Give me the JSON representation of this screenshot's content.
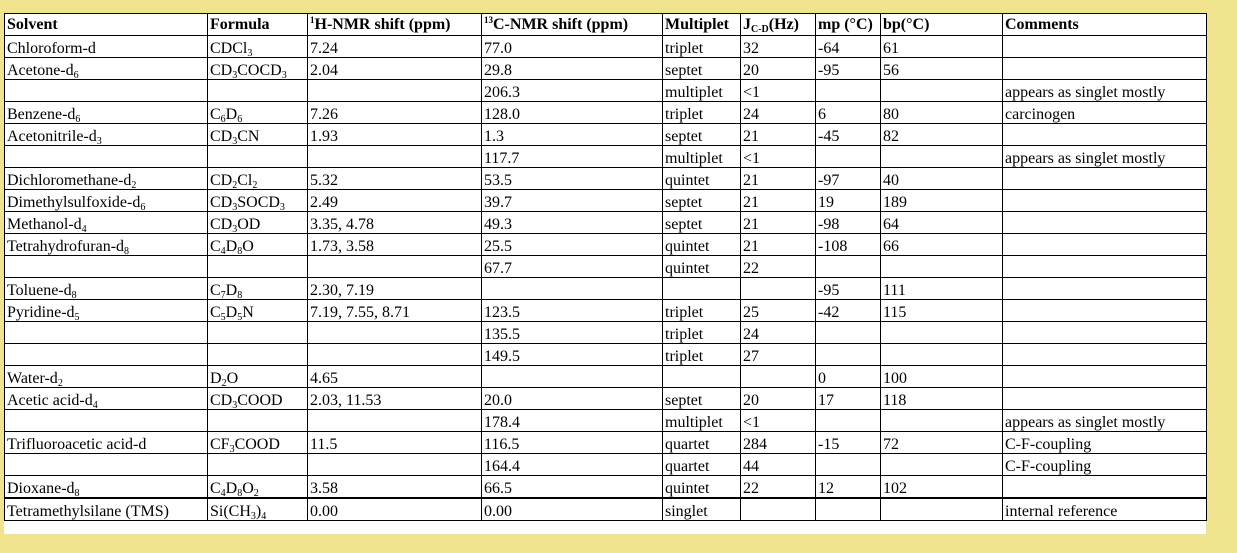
{
  "headers": {
    "solvent": "Solvent",
    "formula": "Formula",
    "h_nmr": {
      "sup": "1",
      "text": "H-NMR shift (ppm)"
    },
    "c_nmr": {
      "sup": "13",
      "text": "C-NMR shift (ppm)"
    },
    "multiplet": "Multiplet",
    "jcd": {
      "text": "J",
      "sub": "C-D",
      "tail": "(Hz)"
    },
    "mp": "mp (°C)",
    "bp": "bp(°C)",
    "comments": "Comments"
  },
  "rows": [
    {
      "solvent": [
        [
          "Chloroform-d",
          ""
        ]
      ],
      "formula": [
        [
          "CDCl",
          ""
        ],
        [
          "3",
          "s"
        ]
      ],
      "h": "7.24",
      "c": "77.0",
      "mult": "triplet",
      "j": "32",
      "mp": "-64",
      "bp": "61",
      "comment": ""
    },
    {
      "solvent": [
        [
          "Acetone-d",
          ""
        ],
        [
          "6",
          "s"
        ]
      ],
      "formula": [
        [
          "CD",
          ""
        ],
        [
          "3",
          "s"
        ],
        [
          "COCD",
          ""
        ],
        [
          "3",
          "s"
        ]
      ],
      "h": "2.04",
      "c": "29.8",
      "mult": "septet",
      "j": "20",
      "mp": "-95",
      "bp": "56",
      "comment": ""
    },
    {
      "solvent": [],
      "formula": [],
      "h": "",
      "c": "206.3",
      "mult": "multiplet",
      "j": "<1",
      "mp": "",
      "bp": "",
      "comment": "appears as singlet mostly"
    },
    {
      "solvent": [
        [
          "Benzene-d",
          ""
        ],
        [
          "6",
          "s"
        ]
      ],
      "formula": [
        [
          "C",
          ""
        ],
        [
          "6",
          "s"
        ],
        [
          "D",
          ""
        ],
        [
          "6",
          "s"
        ]
      ],
      "h": "7.26",
      "c": "128.0",
      "mult": "triplet",
      "j": "24",
      "mp": "6",
      "bp": "80",
      "comment": "carcinogen"
    },
    {
      "solvent": [
        [
          "Acetonitrile-d",
          ""
        ],
        [
          "3",
          "s"
        ]
      ],
      "formula": [
        [
          "CD",
          ""
        ],
        [
          "3",
          "s"
        ],
        [
          "CN",
          ""
        ]
      ],
      "h": "1.93",
      "c": "1.3",
      "mult": "septet",
      "j": "21",
      "mp": "-45",
      "bp": "82",
      "comment": ""
    },
    {
      "solvent": [],
      "formula": [],
      "h": "",
      "c": "117.7",
      "mult": "multiplet",
      "j": "<1",
      "mp": "",
      "bp": "",
      "comment": "appears as singlet mostly"
    },
    {
      "solvent": [
        [
          "Dichloromethane-d",
          ""
        ],
        [
          "2",
          "s"
        ]
      ],
      "formula": [
        [
          "CD",
          ""
        ],
        [
          "2",
          "s"
        ],
        [
          "Cl",
          ""
        ],
        [
          "2",
          "s"
        ]
      ],
      "h": "5.32",
      "c": "53.5",
      "mult": "quintet",
      "j": "21",
      "mp": "-97",
      "bp": "40",
      "comment": ""
    },
    {
      "solvent": [
        [
          "Dimethylsulfoxide-d",
          ""
        ],
        [
          "6",
          "s"
        ]
      ],
      "formula": [
        [
          "CD",
          ""
        ],
        [
          "3",
          "s"
        ],
        [
          "SOCD",
          ""
        ],
        [
          "3",
          "s"
        ]
      ],
      "h": "2.49",
      "c": "39.7",
      "mult": "septet",
      "j": "21",
      "mp": "19",
      "bp": "189",
      "comment": ""
    },
    {
      "solvent": [
        [
          "Methanol-d",
          ""
        ],
        [
          "4",
          "s"
        ]
      ],
      "formula": [
        [
          "CD",
          ""
        ],
        [
          "3",
          "s"
        ],
        [
          "OD",
          ""
        ]
      ],
      "h": "3.35, 4.78",
      "c": "49.3",
      "mult": "septet",
      "j": "21",
      "mp": "-98",
      "bp": "64",
      "comment": ""
    },
    {
      "solvent": [
        [
          "Tetrahydrofuran-d",
          ""
        ],
        [
          "8",
          "s"
        ]
      ],
      "formula": [
        [
          "C",
          ""
        ],
        [
          "4",
          "s"
        ],
        [
          "D",
          ""
        ],
        [
          "8",
          "s"
        ],
        [
          "O",
          ""
        ]
      ],
      "h": "1.73, 3.58",
      "c": "25.5",
      "mult": "quintet",
      "j": "21",
      "mp": "-108",
      "bp": "66",
      "comment": ""
    },
    {
      "solvent": [],
      "formula": [],
      "h": "",
      "c": "67.7",
      "mult": "quintet",
      "j": "22",
      "mp": "",
      "bp": "",
      "comment": ""
    },
    {
      "solvent": [
        [
          "Toluene-d",
          ""
        ],
        [
          "8",
          "s"
        ]
      ],
      "formula": [
        [
          "C",
          ""
        ],
        [
          "7",
          "s"
        ],
        [
          "D",
          ""
        ],
        [
          "8",
          "s"
        ]
      ],
      "h": "2.30, 7.19",
      "c": "",
      "mult": "",
      "j": "",
      "mp": "-95",
      "bp": "111",
      "comment": ""
    },
    {
      "solvent": [
        [
          "Pyridine-d",
          ""
        ],
        [
          "5",
          "s"
        ]
      ],
      "formula": [
        [
          "C",
          ""
        ],
        [
          "5",
          "s"
        ],
        [
          "D",
          ""
        ],
        [
          "5",
          "s"
        ],
        [
          "N",
          ""
        ]
      ],
      "h": "7.19, 7.55, 8.71",
      "c": "123.5",
      "mult": "triplet",
      "j": "25",
      "mp": "-42",
      "bp": "115",
      "comment": ""
    },
    {
      "solvent": [],
      "formula": [],
      "h": "",
      "c": "135.5",
      "mult": "triplet",
      "j": "24",
      "mp": "",
      "bp": "",
      "comment": ""
    },
    {
      "solvent": [],
      "formula": [],
      "h": "",
      "c": "149.5",
      "mult": "triplet",
      "j": "27",
      "mp": "",
      "bp": "",
      "comment": ""
    },
    {
      "solvent": [
        [
          "Water-d",
          ""
        ],
        [
          "2",
          "s"
        ]
      ],
      "formula": [
        [
          "D",
          ""
        ],
        [
          "2",
          "s"
        ],
        [
          "O",
          ""
        ]
      ],
      "h": "4.65",
      "c": "",
      "mult": "",
      "j": "",
      "mp": "0",
      "bp": "100",
      "comment": ""
    },
    {
      "solvent": [
        [
          "Acetic acid-d",
          ""
        ],
        [
          "4",
          "s"
        ]
      ],
      "formula": [
        [
          "CD",
          ""
        ],
        [
          "3",
          "s"
        ],
        [
          "COOD",
          ""
        ]
      ],
      "h": "2.03, 11.53",
      "c": "20.0",
      "mult": "septet",
      "j": "20",
      "mp": "17",
      "bp": "118",
      "comment": ""
    },
    {
      "solvent": [],
      "formula": [],
      "h": "",
      "c": "178.4",
      "mult": "multiplet",
      "j": "<1",
      "mp": "",
      "bp": "",
      "comment": "appears as singlet mostly"
    },
    {
      "solvent": [
        [
          "Trifluoroacetic acid-d",
          ""
        ]
      ],
      "formula": [
        [
          "CF",
          ""
        ],
        [
          "3",
          "s"
        ],
        [
          "COOD",
          ""
        ]
      ],
      "h": "11.5",
      "c": "116.5",
      "mult": "quartet",
      "j": "284",
      "mp": "-15",
      "bp": "72",
      "comment": "C-F-coupling"
    },
    {
      "solvent": [],
      "formula": [],
      "h": "",
      "c": "164.4",
      "mult": "quartet",
      "j": "44",
      "mp": "",
      "bp": "",
      "comment": "C-F-coupling"
    },
    {
      "solvent": [
        [
          "Dioxane-d",
          ""
        ],
        [
          "8",
          "s"
        ]
      ],
      "formula": [
        [
          "C",
          ""
        ],
        [
          "4",
          "s"
        ],
        [
          "D",
          ""
        ],
        [
          "8",
          "s"
        ],
        [
          "O",
          ""
        ],
        [
          "2",
          "s"
        ]
      ],
      "h": "3.58",
      "c": "66.5",
      "mult": "quintet",
      "j": "22",
      "mp": "12",
      "bp": "102",
      "comment": ""
    },
    {
      "solvent": [
        [
          "Tetramethylsilane (TMS)",
          ""
        ]
      ],
      "formula": [
        [
          "Si(CH",
          ""
        ],
        [
          "3",
          "s"
        ],
        [
          ")",
          ""
        ],
        [
          "4",
          "s"
        ]
      ],
      "h": "0.00",
      "c": "0.00",
      "mult": "singlet",
      "j": "",
      "mp": "",
      "bp": "",
      "comment": "internal reference"
    }
  ]
}
